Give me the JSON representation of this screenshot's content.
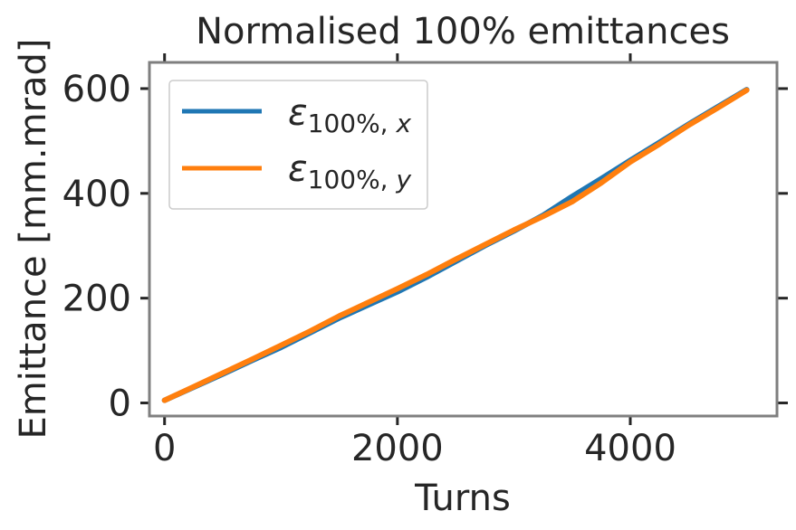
{
  "chart_data": {
    "type": "line",
    "title": "Normalised 100% emittances",
    "xlabel": "Turns",
    "ylabel": "Emittance [mm.mrad]",
    "xlim": [
      -130,
      5260
    ],
    "ylim": [
      -25,
      650
    ],
    "xticks": [
      0,
      2000,
      4000
    ],
    "yticks": [
      0,
      200,
      400,
      600
    ],
    "grid": false,
    "legend_position": "upper-left",
    "series": [
      {
        "name": "ε100%, x",
        "color": "#1f77b4",
        "x": [
          0,
          250,
          500,
          750,
          1000,
          1250,
          1500,
          1750,
          2000,
          2250,
          2500,
          2750,
          3000,
          3250,
          3500,
          3750,
          4000,
          4250,
          4500,
          4750,
          5000
        ],
        "y": [
          5,
          30,
          55,
          81,
          106,
          134,
          162,
          187,
          212,
          240,
          270,
          300,
          328,
          358,
          394,
          428,
          463,
          497,
          532,
          565,
          598
        ]
      },
      {
        "name": "ε100%, y",
        "color": "#ff7f0e",
        "x": [
          0,
          250,
          500,
          750,
          1000,
          1250,
          1500,
          1750,
          2000,
          2250,
          2500,
          2750,
          3000,
          3250,
          3500,
          3750,
          4000,
          4250,
          4500,
          4750,
          5000
        ],
        "y": [
          5,
          31,
          57,
          83,
          110,
          137,
          166,
          192,
          218,
          245,
          274,
          302,
          330,
          356,
          384,
          420,
          460,
          494,
          530,
          563,
          597
        ]
      }
    ]
  }
}
